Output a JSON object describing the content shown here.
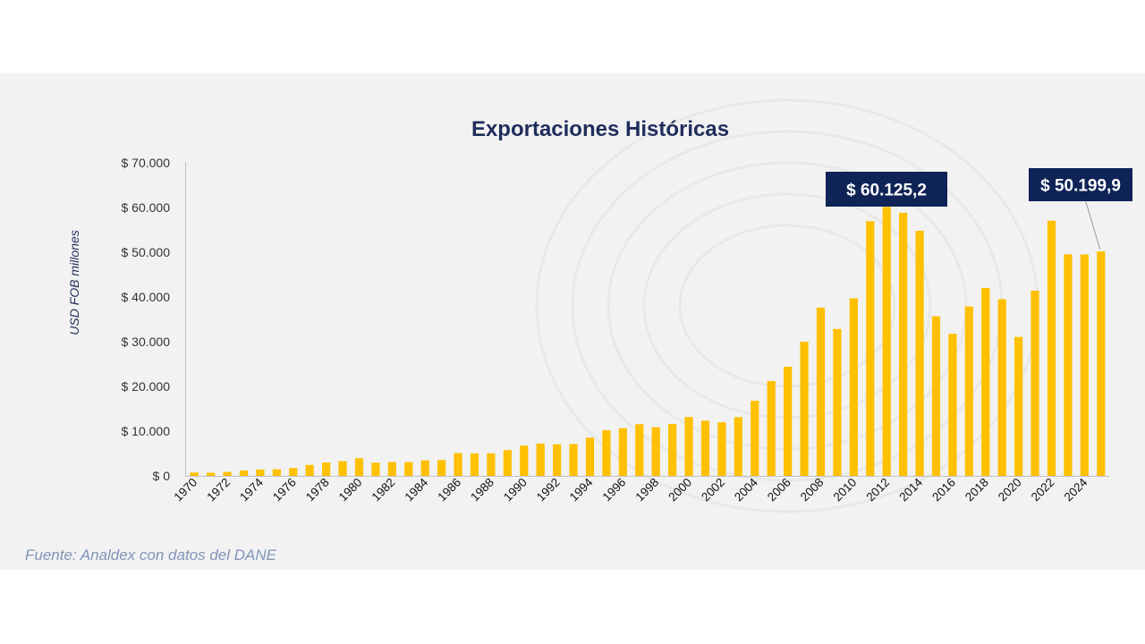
{
  "colors": {
    "bar": "#ffc000",
    "title": "#1f2d5c",
    "callout_bg": "#0e2356",
    "source": "#8094b8"
  },
  "chart_data": {
    "type": "bar",
    "title": "Exportaciones Históricas",
    "xlabel": "",
    "ylabel": "USD FOB millones",
    "ylim": [
      0,
      70000
    ],
    "yticks": [
      0,
      10000,
      20000,
      30000,
      40000,
      50000,
      60000,
      70000
    ],
    "ytick_labels": [
      "$ 0",
      "$ 10.000",
      "$ 20.000",
      "$ 30.000",
      "$ 40.000",
      "$ 50.000",
      "$ 60.000",
      "$ 70.000"
    ],
    "categories": [
      "1970",
      "1971",
      "1972",
      "1973",
      "1974",
      "1975",
      "1976",
      "1977",
      "1978",
      "1979",
      "1980",
      "1981",
      "1982",
      "1983",
      "1984",
      "1985",
      "1986",
      "1987",
      "1988",
      "1989",
      "1990",
      "1991",
      "1992",
      "1993",
      "1994",
      "1995",
      "1996",
      "1997",
      "1998",
      "1999",
      "2000",
      "2001",
      "2002",
      "2003",
      "2004",
      "2005",
      "2006",
      "2007",
      "2008",
      "2009",
      "2010",
      "2011",
      "2012",
      "2013",
      "2014",
      "2015",
      "2016",
      "2017",
      "2018",
      "2019",
      "2020",
      "2021",
      "2022",
      "2023",
      "2024",
      "2025"
    ],
    "xtick_labels_shown": [
      "1970",
      "1972",
      "1974",
      "1976",
      "1978",
      "1980",
      "1982",
      "1984",
      "1986",
      "1988",
      "1990",
      "1992",
      "1994",
      "1996",
      "1998",
      "2000",
      "2002",
      "2004",
      "2006",
      "2008",
      "2010",
      "2012",
      "2014",
      "2016",
      "2018",
      "2020",
      "2022",
      "2024"
    ],
    "values": [
      736,
      690,
      870,
      1180,
      1420,
      1470,
      1750,
      2440,
      3000,
      3300,
      3950,
      2950,
      3090,
      3080,
      3480,
      3550,
      5100,
      5020,
      5030,
      5750,
      6770,
      7230,
      7060,
      7110,
      8540,
      10200,
      10650,
      11550,
      10870,
      11620,
      13160,
      12330,
      11980,
      13130,
      16790,
      21190,
      24390,
      29990,
      37630,
      32850,
      39710,
      56950,
      60125.2,
      58820,
      54800,
      35690,
      31760,
      37880,
      42000,
      39490,
      31060,
      41390,
      57050,
      49540,
      49500,
      50199.9
    ],
    "annotations": [
      {
        "category": "2012",
        "label": "$ 60.125,2"
      },
      {
        "category": "2025",
        "label": "$ 50.199,9"
      }
    ],
    "grid": false,
    "legend": "none",
    "source": "Fuente: Analdex con datos del DANE"
  }
}
